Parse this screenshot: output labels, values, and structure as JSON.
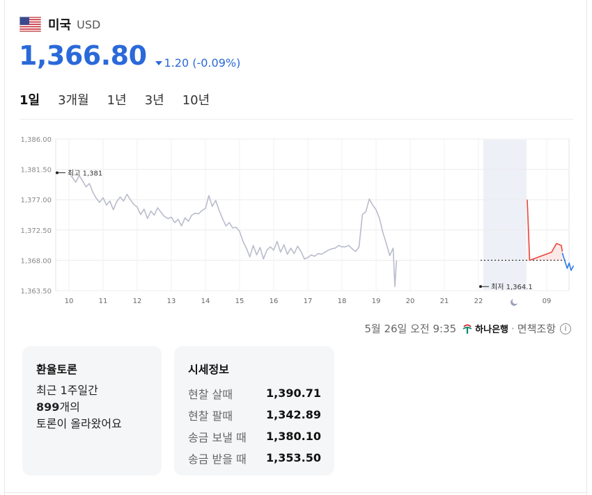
{
  "header": {
    "country": "미국",
    "currency": "USD",
    "flag_icon": "us-flag-icon"
  },
  "rate": {
    "value": "1,366.80",
    "change": "1.20 (-0.09%)",
    "direction": "down",
    "color": "#2a69d9"
  },
  "tabs": [
    {
      "label": "1일",
      "active": true
    },
    {
      "label": "3개월",
      "active": false
    },
    {
      "label": "1년",
      "active": false
    },
    {
      "label": "3년",
      "active": false
    },
    {
      "label": "10년",
      "active": false
    }
  ],
  "chart_data": {
    "type": "line",
    "y_ticks": [
      "1,386.00",
      "1,381.50",
      "1,377.00",
      "1,372.50",
      "1,368.00",
      "1,363.50"
    ],
    "y_tick_values": [
      1386.0,
      1381.5,
      1377.0,
      1372.5,
      1368.0,
      1363.5
    ],
    "ylim": [
      1363.5,
      1386.0
    ],
    "x_ticks": [
      "10",
      "11",
      "12",
      "13",
      "14",
      "15",
      "16",
      "17",
      "18",
      "19",
      "20",
      "21",
      "22",
      "09"
    ],
    "high_label": "최고 1,381",
    "low_label": "최저 1,364.1",
    "high": 1381,
    "low": 1364.1,
    "reference": 1368.0,
    "grid": true,
    "series": [
      {
        "color": "#b9bccb",
        "points": [
          [
            0.0,
            1381.0
          ],
          [
            0.1,
            1380.3
          ],
          [
            0.2,
            1379.6
          ],
          [
            0.3,
            1380.6
          ],
          [
            0.4,
            1379.8
          ],
          [
            0.5,
            1378.9
          ],
          [
            0.6,
            1379.4
          ],
          [
            0.7,
            1378.1
          ],
          [
            0.8,
            1377.2
          ],
          [
            0.9,
            1376.6
          ],
          [
            1.0,
            1377.3
          ],
          [
            1.1,
            1376.2
          ],
          [
            1.2,
            1376.8
          ],
          [
            1.3,
            1375.5
          ],
          [
            1.4,
            1376.7
          ],
          [
            1.5,
            1377.4
          ],
          [
            1.6,
            1376.8
          ],
          [
            1.7,
            1377.8
          ],
          [
            1.8,
            1377.0
          ],
          [
            1.9,
            1376.3
          ],
          [
            2.0,
            1375.9
          ],
          [
            2.1,
            1374.8
          ],
          [
            2.2,
            1375.6
          ],
          [
            2.3,
            1374.2
          ],
          [
            2.4,
            1375.3
          ],
          [
            2.5,
            1374.7
          ],
          [
            2.6,
            1375.8
          ],
          [
            2.7,
            1375.1
          ],
          [
            2.8,
            1374.5
          ],
          [
            2.9,
            1374.2
          ],
          [
            3.0,
            1374.4
          ],
          [
            3.1,
            1373.6
          ],
          [
            3.2,
            1374.1
          ],
          [
            3.3,
            1373.1
          ],
          [
            3.4,
            1374.3
          ],
          [
            3.5,
            1373.8
          ],
          [
            3.6,
            1374.7
          ],
          [
            3.7,
            1375.0
          ],
          [
            3.8,
            1374.9
          ],
          [
            3.9,
            1375.4
          ],
          [
            4.0,
            1375.7
          ],
          [
            4.1,
            1377.6
          ],
          [
            4.2,
            1376.0
          ],
          [
            4.3,
            1376.9
          ],
          [
            4.4,
            1375.4
          ],
          [
            4.5,
            1374.2
          ],
          [
            4.6,
            1373.1
          ],
          [
            4.7,
            1373.6
          ],
          [
            4.8,
            1372.8
          ],
          [
            4.9,
            1372.9
          ],
          [
            5.0,
            1372.3
          ],
          [
            5.1,
            1370.8
          ],
          [
            5.2,
            1369.8
          ],
          [
            5.3,
            1368.5
          ],
          [
            5.4,
            1370.2
          ],
          [
            5.5,
            1368.8
          ],
          [
            5.6,
            1369.9
          ],
          [
            5.7,
            1368.2
          ],
          [
            5.8,
            1369.5
          ],
          [
            5.9,
            1370.0
          ],
          [
            6.0,
            1369.5
          ],
          [
            6.1,
            1370.8
          ],
          [
            6.2,
            1369.2
          ],
          [
            6.3,
            1370.3
          ],
          [
            6.4,
            1368.9
          ],
          [
            6.5,
            1369.8
          ],
          [
            6.6,
            1369.0
          ],
          [
            6.7,
            1370.1
          ],
          [
            6.8,
            1369.3
          ],
          [
            6.9,
            1368.2
          ],
          [
            7.0,
            1368.4
          ],
          [
            7.1,
            1368.8
          ],
          [
            7.2,
            1368.6
          ],
          [
            7.3,
            1369.0
          ],
          [
            7.4,
            1368.9
          ],
          [
            7.5,
            1369.2
          ],
          [
            7.6,
            1369.5
          ],
          [
            7.7,
            1369.7
          ],
          [
            7.8,
            1369.8
          ],
          [
            7.9,
            1370.2
          ],
          [
            8.0,
            1370.0
          ],
          [
            8.1,
            1370.0
          ],
          [
            8.2,
            1370.2
          ],
          [
            8.3,
            1369.7
          ],
          [
            8.4,
            1369.3
          ],
          [
            8.5,
            1370.0
          ],
          [
            8.6,
            1374.8
          ],
          [
            8.7,
            1375.2
          ],
          [
            8.8,
            1377.1
          ],
          [
            8.9,
            1376.2
          ],
          [
            9.0,
            1375.5
          ],
          [
            9.1,
            1374.2
          ],
          [
            9.2,
            1372.1
          ],
          [
            9.3,
            1370.5
          ],
          [
            9.4,
            1368.7
          ],
          [
            9.5,
            1369.8
          ],
          [
            9.55,
            1364.1
          ],
          [
            9.6,
            1368.0
          ]
        ]
      },
      {
        "color": "#e8463c",
        "points": [
          [
            10.0,
            1377.0
          ],
          [
            10.05,
            1368.0
          ],
          [
            10.5,
            1369.2
          ],
          [
            10.6,
            1370.5
          ],
          [
            10.7,
            1370.2
          ],
          [
            10.72,
            1369.3
          ]
        ]
      },
      {
        "color": "#2a7be4",
        "points": [
          [
            10.72,
            1369.1
          ],
          [
            10.78,
            1367.7
          ],
          [
            10.82,
            1366.8
          ],
          [
            10.86,
            1367.6
          ],
          [
            10.9,
            1366.5
          ],
          [
            10.95,
            1367.2
          ]
        ]
      }
    ]
  },
  "source": {
    "timestamp": "5월 26일 오전 9:35",
    "bank": "하나은행",
    "disclaimer": "면책조항",
    "separator": "·"
  },
  "forum": {
    "title": "환율토론",
    "line1": "최근 1주일간",
    "count": "899",
    "count_suffix": "개의",
    "line3": "토론이 올라왔어요"
  },
  "market": {
    "title": "시세정보",
    "rows": [
      {
        "label": "현찰 살때",
        "value": "1,390.71"
      },
      {
        "label": "현찰 팔때",
        "value": "1,342.89"
      },
      {
        "label": "송금 보낼 때",
        "value": "1,380.10"
      },
      {
        "label": "송금 받을 때",
        "value": "1,353.50"
      }
    ]
  }
}
